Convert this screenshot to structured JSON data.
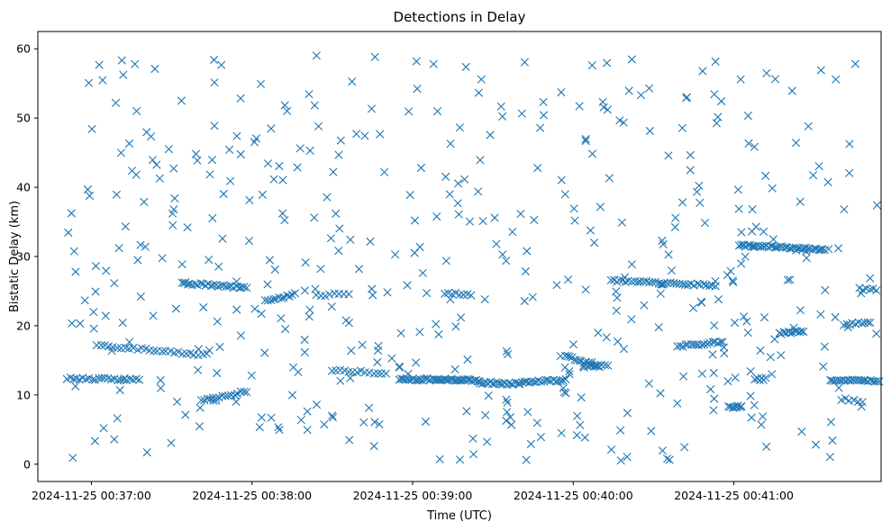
{
  "chart_data": {
    "type": "scatter",
    "title": "Detections in Delay",
    "xlabel": "Time (UTC)",
    "ylabel": "Bistatic Delay (km)",
    "marker": "x",
    "color": "#1f77b4",
    "grid": false,
    "legend": "none",
    "xlim": [
      "2024-11-25 00:36:40",
      "2024-11-25 00:41:55"
    ],
    "ylim": [
      -2.5,
      62.5
    ],
    "xticks": [
      "2024-11-25 00:37:00",
      "2024-11-25 00:38:00",
      "2024-11-25 00:39:00",
      "2024-11-25 00:40:00",
      "2024-11-25 00:41:00"
    ],
    "yticks": [
      0,
      10,
      20,
      30,
      40,
      50,
      60
    ],
    "tracks": [
      {
        "start": "2024-11-25 00:36:51",
        "end": "2024-11-25 00:37:18",
        "delay_start": 12.4,
        "delay_end": 12.2,
        "points": 24
      },
      {
        "start": "2024-11-25 00:37:02",
        "end": "2024-11-25 00:37:43",
        "delay_start": 17.2,
        "delay_end": 15.8,
        "points": 28
      },
      {
        "start": "2024-11-25 00:37:34",
        "end": "2024-11-25 00:37:58",
        "delay_start": 26.2,
        "delay_end": 25.5,
        "points": 26
      },
      {
        "start": "2024-11-25 00:37:41",
        "end": "2024-11-25 00:37:58",
        "delay_start": 9.2,
        "delay_end": 10.5,
        "points": 16
      },
      {
        "start": "2024-11-25 00:38:05",
        "end": "2024-11-25 00:38:16",
        "delay_start": 23.6,
        "delay_end": 24.6,
        "points": 12
      },
      {
        "start": "2024-11-25 00:38:24",
        "end": "2024-11-25 00:38:36",
        "delay_start": 24.3,
        "delay_end": 24.7,
        "points": 8
      },
      {
        "start": "2024-11-25 00:38:30",
        "end": "2024-11-25 00:38:50",
        "delay_start": 13.6,
        "delay_end": 13.1,
        "points": 14
      },
      {
        "start": "2024-11-25 00:38:55",
        "end": "2024-11-25 00:39:25",
        "delay_start": 12.3,
        "delay_end": 12.1,
        "points": 46
      },
      {
        "start": "2024-11-25 00:39:25",
        "end": "2024-11-25 00:39:40",
        "delay_start": 11.8,
        "delay_end": 11.6,
        "points": 20
      },
      {
        "start": "2024-11-25 00:39:12",
        "end": "2024-11-25 00:39:22",
        "delay_start": 24.7,
        "delay_end": 24.5,
        "points": 8
      },
      {
        "start": "2024-11-25 00:39:40",
        "end": "2024-11-25 00:39:57",
        "delay_start": 11.8,
        "delay_end": 12.2,
        "points": 20
      },
      {
        "start": "2024-11-25 00:39:57",
        "end": "2024-11-25 00:40:10",
        "delay_start": 15.6,
        "delay_end": 14.1,
        "points": 16
      },
      {
        "start": "2024-11-25 00:40:04",
        "end": "2024-11-25 00:40:13",
        "delay_start": 14.0,
        "delay_end": 14.4,
        "points": 8
      },
      {
        "start": "2024-11-25 00:40:14",
        "end": "2024-11-25 00:40:53",
        "delay_start": 26.5,
        "delay_end": 25.8,
        "points": 36
      },
      {
        "start": "2024-11-25 00:40:39",
        "end": "2024-11-25 00:40:56",
        "delay_start": 17.0,
        "delay_end": 17.7,
        "points": 18
      },
      {
        "start": "2024-11-25 00:40:58",
        "end": "2024-11-25 00:41:03",
        "delay_start": 8.3,
        "delay_end": 8.3,
        "points": 8
      },
      {
        "start": "2024-11-25 00:41:02",
        "end": "2024-11-25 00:41:34",
        "delay_start": 31.6,
        "delay_end": 31.0,
        "points": 42
      },
      {
        "start": "2024-11-25 00:41:08",
        "end": "2024-11-25 00:41:12",
        "delay_start": 12.3,
        "delay_end": 12.3,
        "points": 6
      },
      {
        "start": "2024-11-25 00:41:17",
        "end": "2024-11-25 00:41:26",
        "delay_start": 18.9,
        "delay_end": 19.2,
        "points": 12
      },
      {
        "start": "2024-11-25 00:41:47",
        "end": "2024-11-25 00:41:56",
        "delay_start": 25.3,
        "delay_end": 25.1,
        "points": 8
      },
      {
        "start": "2024-11-25 00:41:36",
        "end": "2024-11-25 00:41:55",
        "delay_start": 12.2,
        "delay_end": 12.0,
        "points": 24
      },
      {
        "start": "2024-11-25 00:41:40",
        "end": "2024-11-25 00:41:48",
        "delay_start": 9.4,
        "delay_end": 9.1,
        "points": 6
      },
      {
        "start": "2024-11-25 00:41:41",
        "end": "2024-11-25 00:41:51",
        "delay_start": 20.2,
        "delay_end": 20.5,
        "points": 10
      }
    ],
    "scattered_points": {
      "start": "2024-11-25 00:36:50",
      "end": "2024-11-25 00:41:55",
      "delay_min": 0.5,
      "delay_max": 59.8,
      "count": 480
    }
  }
}
